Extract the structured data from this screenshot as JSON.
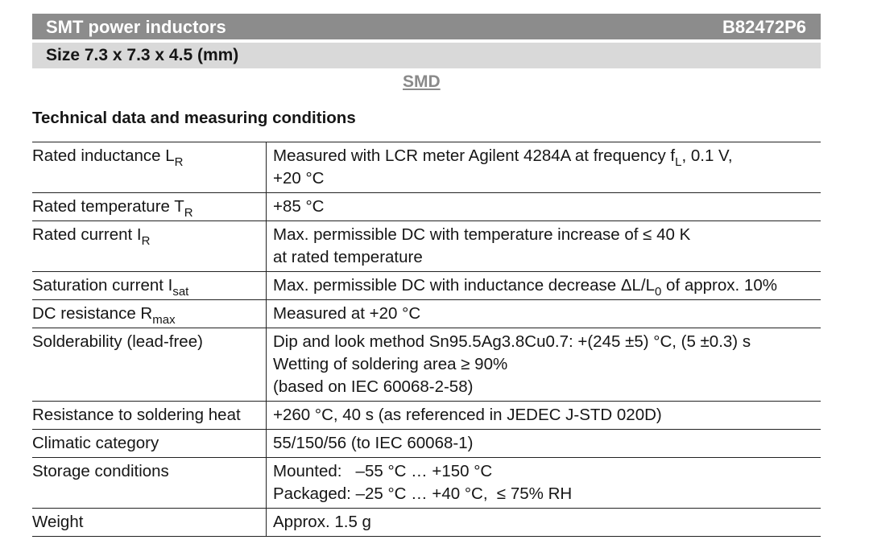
{
  "header": {
    "title": "SMT power inductors",
    "part": "B82472P6",
    "size": "Size 7.3 x 7.3 x 4.5 (mm)",
    "badge": "SMD"
  },
  "section": "Technical data and measuring conditions",
  "table": {
    "rows": [
      {
        "label": [
          [
            "Rated inductance L",
            {
              "sub": "R"
            }
          ]
        ],
        "value": [
          [
            "Measured with LCR meter Agilent 4284A at frequency f",
            {
              "sub": "L"
            },
            ", 0.1 V,"
          ],
          [
            "+20 °C"
          ]
        ]
      },
      {
        "label": [
          [
            "Rated temperature T",
            {
              "sub": "R"
            }
          ]
        ],
        "value": [
          [
            "+85 °C"
          ]
        ]
      },
      {
        "label": [
          [
            "Rated current I",
            {
              "sub": "R"
            }
          ]
        ],
        "value": [
          [
            "Max. permissible DC with temperature increase of ≤ 40 K"
          ],
          [
            "at rated temperature"
          ]
        ]
      },
      {
        "label": [
          [
            "Saturation current I",
            {
              "sub": "sat"
            }
          ]
        ],
        "value": [
          [
            "Max. permissible DC with inductance decrease ΔL/L",
            {
              "sub": "0"
            },
            " of approx. 10%"
          ]
        ]
      },
      {
        "label": [
          [
            "DC resistance R",
            {
              "sub": "max"
            }
          ]
        ],
        "value": [
          [
            "Measured at +20 °C"
          ]
        ]
      },
      {
        "label": [
          [
            "Solderability (lead-free)"
          ]
        ],
        "value": [
          [
            "Dip and look method Sn95.5Ag3.8Cu0.7: +(245 ±5) °C, (5 ±0.3) s"
          ],
          [
            "Wetting of soldering area ≥ 90%"
          ],
          [
            "(based on IEC 60068-2-58)"
          ]
        ]
      },
      {
        "label": [
          [
            "Resistance to soldering heat"
          ]
        ],
        "value": [
          [
            "+260 °C, 40 s (as referenced in JEDEC J-STD 020D)"
          ]
        ]
      },
      {
        "label": [
          [
            "Climatic category"
          ]
        ],
        "value": [
          [
            "55/150/56 (to IEC 60068-1)"
          ]
        ]
      },
      {
        "label": [
          [
            "Storage conditions"
          ]
        ],
        "value": [
          [
            "Mounted:   –55 °C … +150 °C"
          ],
          [
            "Packaged: –25 °C … +40 °C,  ≤ 75% RH"
          ]
        ]
      },
      {
        "label": [
          [
            "Weight"
          ]
        ],
        "value": [
          [
            "Approx. 1.5 g"
          ]
        ]
      }
    ]
  }
}
